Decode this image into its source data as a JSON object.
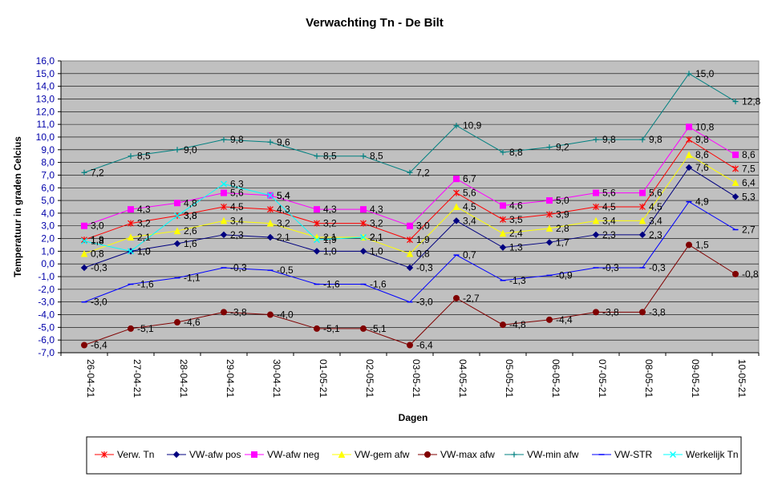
{
  "chart_data": {
    "type": "line",
    "title": "Verwachting Tn - De Bilt",
    "xlabel": "Dagen",
    "ylabel": "Temperatuur in graden Celcius",
    "ylim": [
      -7,
      16
    ],
    "ytick_step": 1,
    "plot_background": "#c0c0c0",
    "grid": true,
    "legend_position": "bottom",
    "categories": [
      "26-04-21",
      "27-04-21",
      "28-04-21",
      "29-04-21",
      "30-04-21",
      "01-05-21",
      "02-05-21",
      "03-05-21",
      "04-05-21",
      "05-05-21",
      "06-05-21",
      "07-05-21",
      "08-05-21",
      "09-05-21",
      "10-05-21"
    ],
    "series": [
      {
        "name": "Verw. Tn",
        "color": "#ff0000",
        "marker": "star",
        "show_labels": true,
        "values": [
          1.9,
          3.2,
          3.8,
          4.5,
          4.3,
          3.2,
          3.2,
          1.9,
          5.6,
          3.5,
          3.9,
          4.5,
          4.5,
          9.8,
          7.5
        ]
      },
      {
        "name": "VW-afw pos",
        "color": "#000080",
        "marker": "diamond",
        "show_labels": true,
        "values": [
          -0.3,
          1.0,
          1.6,
          2.3,
          2.1,
          1.0,
          1.0,
          -0.3,
          3.4,
          1.3,
          1.7,
          2.3,
          2.3,
          7.6,
          5.3
        ]
      },
      {
        "name": "VW-afw neg",
        "color": "#ff00ff",
        "marker": "square",
        "show_labels": true,
        "values": [
          3.0,
          4.3,
          4.8,
          5.6,
          5.4,
          4.3,
          4.3,
          3.0,
          6.7,
          4.6,
          5.0,
          5.6,
          5.6,
          10.8,
          8.6
        ]
      },
      {
        "name": "VW-gem afw",
        "color": "#ffff00",
        "marker": "triangle",
        "show_labels": true,
        "values": [
          0.8,
          2.1,
          2.6,
          3.4,
          3.2,
          2.1,
          2.1,
          0.8,
          4.5,
          2.4,
          2.8,
          3.4,
          3.4,
          8.6,
          6.4
        ]
      },
      {
        "name": "VW-max afw",
        "color": "#800000",
        "marker": "circle",
        "show_labels": true,
        "values": [
          -6.4,
          -5.1,
          -4.6,
          -3.8,
          -4.0,
          -5.1,
          -5.1,
          -6.4,
          -2.7,
          -4.8,
          -4.4,
          -3.8,
          -3.8,
          1.5,
          -0.8
        ]
      },
      {
        "name": "VW-min afw",
        "color": "#008080",
        "marker": "plus",
        "show_labels": true,
        "values": [
          7.2,
          8.5,
          9.0,
          9.8,
          9.6,
          8.5,
          8.5,
          7.2,
          10.9,
          8.8,
          9.2,
          9.8,
          9.8,
          15.0,
          12.8
        ]
      },
      {
        "name": "VW-STR",
        "color": "#0000ff",
        "marker": "dash",
        "show_labels": true,
        "values": [
          -3.0,
          -1.6,
          -1.1,
          -0.3,
          -0.5,
          -1.6,
          -1.6,
          -3.0,
          0.7,
          -1.3,
          -0.9,
          -0.3,
          -0.3,
          4.9,
          2.7
        ]
      },
      {
        "name": "Werkelijk Tn",
        "color": "#00ffff",
        "marker": "x",
        "show_labels": true,
        "values": [
          1.8,
          1.0,
          3.8,
          6.3,
          5.4,
          1.9,
          2.1,
          null,
          null,
          null,
          null,
          null,
          null,
          null,
          null
        ]
      }
    ]
  }
}
